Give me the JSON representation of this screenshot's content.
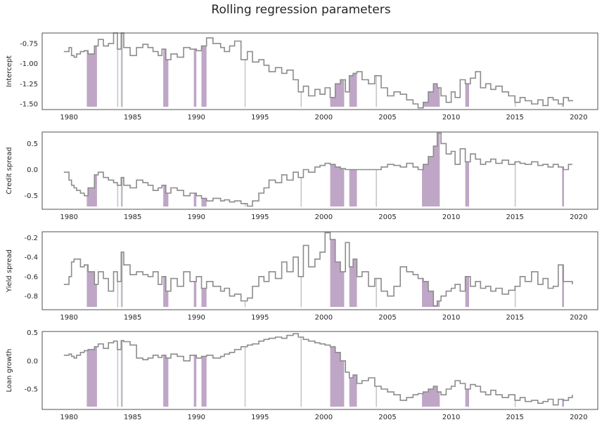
{
  "title": "Rolling regression parameters",
  "colors": {
    "line": "#8c8c8c",
    "shade": "#bfa6c6",
    "frame": "#262626"
  },
  "chart_data": [
    {
      "type": "line",
      "ylabel": "Intercept",
      "xlim": [
        1977.9,
        2021.5
      ],
      "ylim": [
        -1.57,
        -0.62
      ],
      "xticks": [
        1980,
        1985,
        1990,
        1995,
        2000,
        2005,
        2010,
        2015,
        2020
      ],
      "xtick_labels": [
        "1980",
        "1985",
        "1990",
        "1995",
        "2000",
        "2005",
        "2010",
        "2015",
        "2020"
      ],
      "yticks": [
        -0.75,
        -1.0,
        -1.25,
        -1.5
      ],
      "ytick_labels": [
        "-0.75",
        "-1.00",
        "-1.25",
        "-1.50"
      ],
      "series": [
        {
          "x": [
            1979.6,
            1980.0,
            1980.2,
            1980.4,
            1980.6,
            1980.9,
            1981.2,
            1981.5,
            1982.0,
            1982.3,
            1982.7,
            1983.1,
            1983.5,
            1983.8,
            1984.1,
            1984.3,
            1984.8,
            1985.3,
            1985.8,
            1986.2,
            1986.6,
            1987.0,
            1987.3,
            1987.6,
            1988.0,
            1988.5,
            1989.0,
            1989.5,
            1990.0,
            1990.4,
            1990.8,
            1991.3,
            1991.9,
            1992.2,
            1992.6,
            1993.0,
            1993.5,
            1994.0,
            1994.4,
            1994.9,
            1995.3,
            1995.7,
            1996.2,
            1996.7,
            1997.1,
            1997.6,
            1998.0,
            1998.4,
            1998.8,
            1999.3,
            1999.7,
            2000.1,
            2000.5,
            2000.9,
            2001.3,
            2001.7,
            2002.0,
            2002.3,
            2002.6,
            2003.0,
            2003.5,
            2004.0,
            2004.5,
            2005.0,
            2005.5,
            2006.0,
            2006.5,
            2007.0,
            2007.4,
            2007.8,
            2008.2,
            2008.6,
            2008.9,
            2009.2,
            2009.6,
            2010.0,
            2010.3,
            2010.7,
            2011.1,
            2011.5,
            2011.9,
            2012.3,
            2012.7,
            2013.1,
            2013.5,
            2014.0,
            2014.5,
            2015.0,
            2015.4,
            2015.8,
            2016.3,
            2016.8,
            2017.2,
            2017.6,
            2018.0,
            2018.4,
            2018.8,
            2019.2,
            2019.5
          ],
          "y": [
            -0.85,
            -0.8,
            -0.9,
            -0.92,
            -0.88,
            -0.85,
            -0.84,
            -0.88,
            -0.78,
            -0.7,
            -0.78,
            -0.75,
            -0.62,
            -0.82,
            -0.62,
            -0.8,
            -0.9,
            -0.8,
            -0.76,
            -0.8,
            -0.85,
            -0.9,
            -0.82,
            -0.95,
            -0.88,
            -0.92,
            -0.8,
            -0.82,
            -0.84,
            -0.78,
            -0.68,
            -0.75,
            -0.8,
            -0.85,
            -0.78,
            -0.72,
            -0.95,
            -0.85,
            -0.98,
            -0.95,
            -1.02,
            -1.1,
            -1.05,
            -1.12,
            -1.08,
            -1.2,
            -1.35,
            -1.28,
            -1.4,
            -1.32,
            -1.38,
            -1.3,
            -1.42,
            -1.25,
            -1.2,
            -1.35,
            -1.15,
            -1.12,
            -1.1,
            -1.2,
            -1.25,
            -1.15,
            -1.3,
            -1.4,
            -1.35,
            -1.38,
            -1.45,
            -1.5,
            -1.55,
            -1.48,
            -1.35,
            -1.25,
            -1.3,
            -1.4,
            -1.48,
            -1.35,
            -1.42,
            -1.2,
            -1.25,
            -1.18,
            -1.1,
            -1.3,
            -1.25,
            -1.32,
            -1.28,
            -1.35,
            -1.4,
            -1.48,
            -1.42,
            -1.46,
            -1.5,
            -1.45,
            -1.52,
            -1.42,
            -1.45,
            -1.5,
            -1.42,
            -1.46,
            -1.45
          ]
        }
      ]
    },
    {
      "type": "line",
      "ylabel": "Credit spread",
      "xlim": [
        1977.9,
        2021.5
      ],
      "ylim": [
        -0.76,
        0.72
      ],
      "xticks": [
        1980,
        1985,
        1990,
        1995,
        2000,
        2005,
        2010,
        2015,
        2020
      ],
      "xtick_labels": [
        "1980",
        "1985",
        "1990",
        "1995",
        "2000",
        "2005",
        "2010",
        "2015",
        "2020"
      ],
      "yticks": [
        0.5,
        0.0,
        -0.5
      ],
      "ytick_labels": [
        "0.5",
        "0.0",
        "-0.5"
      ],
      "series": [
        {
          "x": [
            1979.6,
            1980.0,
            1980.2,
            1980.4,
            1980.6,
            1980.9,
            1981.2,
            1981.5,
            1982.0,
            1982.3,
            1982.7,
            1983.1,
            1983.5,
            1983.8,
            1984.1,
            1984.3,
            1984.8,
            1985.3,
            1985.8,
            1986.2,
            1986.6,
            1987.0,
            1987.3,
            1987.6,
            1988.0,
            1988.5,
            1989.0,
            1989.5,
            1990.0,
            1990.4,
            1990.8,
            1991.3,
            1991.9,
            1992.2,
            1992.6,
            1993.0,
            1993.5,
            1994.0,
            1994.4,
            1994.9,
            1995.3,
            1995.7,
            1996.2,
            1996.7,
            1997.1,
            1997.6,
            1998.0,
            1998.4,
            1998.8,
            1999.3,
            1999.7,
            2000.1,
            2000.5,
            2000.9,
            2001.3,
            2001.7,
            2002.0,
            2002.3,
            2002.6,
            2003.0,
            2003.5,
            2004.0,
            2004.5,
            2005.0,
            2005.5,
            2006.0,
            2006.5,
            2007.0,
            2007.4,
            2007.8,
            2008.2,
            2008.6,
            2008.9,
            2009.2,
            2009.6,
            2010.0,
            2010.3,
            2010.7,
            2011.1,
            2011.5,
            2011.9,
            2012.3,
            2012.7,
            2013.1,
            2013.5,
            2014.0,
            2014.5,
            2015.0,
            2015.4,
            2015.8,
            2016.3,
            2016.8,
            2017.2,
            2017.6,
            2018.0,
            2018.4,
            2018.8,
            2019.2,
            2019.5
          ],
          "y": [
            -0.05,
            -0.2,
            -0.3,
            -0.35,
            -0.4,
            -0.45,
            -0.5,
            -0.35,
            -0.1,
            -0.05,
            -0.15,
            -0.2,
            -0.25,
            -0.3,
            -0.15,
            -0.3,
            -0.35,
            -0.2,
            -0.25,
            -0.3,
            -0.4,
            -0.35,
            -0.3,
            -0.45,
            -0.35,
            -0.4,
            -0.5,
            -0.45,
            -0.5,
            -0.55,
            -0.6,
            -0.55,
            -0.6,
            -0.58,
            -0.62,
            -0.6,
            -0.65,
            -0.7,
            -0.6,
            -0.45,
            -0.35,
            -0.2,
            -0.25,
            -0.1,
            -0.2,
            -0.05,
            -0.15,
            0.0,
            -0.05,
            0.05,
            0.08,
            0.12,
            0.1,
            0.05,
            0.02,
            0.0,
            0.0,
            0.0,
            0.0,
            0.0,
            0.0,
            0.0,
            0.05,
            0.1,
            0.08,
            0.05,
            0.12,
            0.05,
            0.0,
            0.1,
            0.25,
            0.45,
            0.7,
            0.5,
            0.3,
            0.35,
            0.1,
            0.4,
            0.15,
            0.3,
            0.2,
            0.1,
            0.15,
            0.2,
            0.12,
            0.18,
            0.1,
            0.15,
            0.12,
            0.1,
            0.15,
            0.08,
            0.1,
            0.05,
            0.1,
            0.05,
            0.0,
            0.1,
            0.1
          ]
        }
      ]
    },
    {
      "type": "line",
      "ylabel": "Yield spread",
      "xlim": [
        1977.9,
        2021.5
      ],
      "ylim": [
        -0.94,
        -0.14
      ],
      "xticks": [
        1980,
        1985,
        1990,
        1995,
        2000,
        2005,
        2010,
        2015,
        2020
      ],
      "xtick_labels": [
        "1980",
        "1985",
        "1990",
        "1995",
        "2000",
        "2005",
        "2010",
        "2015",
        "2020"
      ],
      "yticks": [
        -0.2,
        -0.4,
        -0.6,
        -0.8
      ],
      "ytick_labels": [
        "-0.2",
        "-0.4",
        "-0.6",
        "-0.8"
      ],
      "series": [
        {
          "x": [
            1979.6,
            1980.0,
            1980.2,
            1980.4,
            1980.6,
            1980.9,
            1981.2,
            1981.5,
            1982.0,
            1982.3,
            1982.7,
            1983.1,
            1983.5,
            1983.8,
            1984.1,
            1984.3,
            1984.8,
            1985.3,
            1985.8,
            1986.2,
            1986.6,
            1987.0,
            1987.3,
            1987.6,
            1988.0,
            1988.5,
            1989.0,
            1989.5,
            1990.0,
            1990.4,
            1990.8,
            1991.3,
            1991.9,
            1992.2,
            1992.6,
            1993.0,
            1993.5,
            1994.0,
            1994.4,
            1994.9,
            1995.3,
            1995.7,
            1996.2,
            1996.7,
            1997.1,
            1997.6,
            1998.0,
            1998.4,
            1998.8,
            1999.3,
            1999.7,
            2000.1,
            2000.5,
            2000.9,
            2001.3,
            2001.7,
            2002.0,
            2002.3,
            2002.6,
            2003.0,
            2003.5,
            2004.0,
            2004.5,
            2005.0,
            2005.5,
            2006.0,
            2006.5,
            2007.0,
            2007.4,
            2007.8,
            2008.2,
            2008.6,
            2008.9,
            2009.2,
            2009.6,
            2010.0,
            2010.3,
            2010.7,
            2011.1,
            2011.5,
            2011.9,
            2012.3,
            2012.7,
            2013.1,
            2013.5,
            2014.0,
            2014.5,
            2015.0,
            2015.4,
            2015.8,
            2016.3,
            2016.8,
            2017.2,
            2017.6,
            2018.0,
            2018.4,
            2018.8,
            2019.2,
            2019.5
          ],
          "y": [
            -0.68,
            -0.6,
            -0.45,
            -0.42,
            -0.42,
            -0.5,
            -0.48,
            -0.55,
            -0.68,
            -0.55,
            -0.62,
            -0.75,
            -0.55,
            -0.65,
            -0.35,
            -0.48,
            -0.58,
            -0.55,
            -0.58,
            -0.6,
            -0.55,
            -0.68,
            -0.6,
            -0.75,
            -0.62,
            -0.7,
            -0.55,
            -0.65,
            -0.6,
            -0.72,
            -0.65,
            -0.7,
            -0.75,
            -0.72,
            -0.8,
            -0.78,
            -0.85,
            -0.82,
            -0.7,
            -0.6,
            -0.65,
            -0.55,
            -0.62,
            -0.45,
            -0.55,
            -0.4,
            -0.6,
            -0.28,
            -0.5,
            -0.42,
            -0.35,
            -0.15,
            -0.22,
            -0.45,
            -0.55,
            -0.25,
            -0.5,
            -0.42,
            -0.6,
            -0.55,
            -0.7,
            -0.62,
            -0.75,
            -0.8,
            -0.7,
            -0.5,
            -0.55,
            -0.58,
            -0.62,
            -0.65,
            -0.75,
            -0.9,
            -0.85,
            -0.8,
            -0.75,
            -0.72,
            -0.68,
            -0.75,
            -0.6,
            -0.7,
            -0.65,
            -0.72,
            -0.7,
            -0.75,
            -0.72,
            -0.78,
            -0.74,
            -0.7,
            -0.6,
            -0.65,
            -0.55,
            -0.68,
            -0.62,
            -0.72,
            -0.7,
            -0.48,
            -0.65,
            -0.65,
            -0.68
          ]
        }
      ]
    },
    {
      "type": "line",
      "ylabel": "Loan growth",
      "xlim": [
        1977.9,
        2021.5
      ],
      "ylim": [
        -0.86,
        0.52
      ],
      "xticks": [
        1980,
        1985,
        1990,
        1995,
        2000,
        2005,
        2010,
        2015,
        2020
      ],
      "xtick_labels": [
        "1980",
        "1985",
        "1990",
        "1995",
        "2000",
        "2005",
        "2010",
        "2015",
        "2020"
      ],
      "yticks": [
        0.5,
        0.0,
        -0.5
      ],
      "ytick_labels": [
        "0.5",
        "0.0",
        "-0.5"
      ],
      "series": [
        {
          "x": [
            1979.6,
            1980.0,
            1980.2,
            1980.4,
            1980.6,
            1980.9,
            1981.2,
            1981.5,
            1982.0,
            1982.3,
            1982.7,
            1983.1,
            1983.5,
            1983.8,
            1984.1,
            1984.3,
            1984.8,
            1985.3,
            1985.8,
            1986.2,
            1986.6,
            1987.0,
            1987.3,
            1987.6,
            1988.0,
            1988.5,
            1989.0,
            1989.5,
            1990.0,
            1990.4,
            1990.8,
            1991.3,
            1991.9,
            1992.2,
            1992.6,
            1993.0,
            1993.5,
            1994.0,
            1994.4,
            1994.9,
            1995.3,
            1995.7,
            1996.2,
            1996.7,
            1997.1,
            1997.6,
            1998.0,
            1998.4,
            1998.8,
            1999.3,
            1999.7,
            2000.1,
            2000.5,
            2000.9,
            2001.3,
            2001.7,
            2002.0,
            2002.3,
            2002.6,
            2003.0,
            2003.5,
            2004.0,
            2004.5,
            2005.0,
            2005.5,
            2006.0,
            2006.5,
            2007.0,
            2007.4,
            2007.8,
            2008.2,
            2008.6,
            2008.9,
            2009.2,
            2009.6,
            2010.0,
            2010.3,
            2010.7,
            2011.1,
            2011.5,
            2011.9,
            2012.3,
            2012.7,
            2013.1,
            2013.5,
            2014.0,
            2014.5,
            2015.0,
            2015.4,
            2015.8,
            2016.3,
            2016.8,
            2017.2,
            2017.6,
            2018.0,
            2018.4,
            2018.8,
            2019.2,
            2019.5
          ],
          "y": [
            0.1,
            0.12,
            0.08,
            0.05,
            0.1,
            0.15,
            0.18,
            0.2,
            0.25,
            0.3,
            0.22,
            0.32,
            0.35,
            0.2,
            0.36,
            0.34,
            0.28,
            0.05,
            0.02,
            0.05,
            0.1,
            0.06,
            0.1,
            0.05,
            0.12,
            0.08,
            0.0,
            0.1,
            0.05,
            0.08,
            0.1,
            0.05,
            0.08,
            0.12,
            0.15,
            0.2,
            0.25,
            0.28,
            0.3,
            0.35,
            0.38,
            0.4,
            0.42,
            0.4,
            0.45,
            0.48,
            0.42,
            0.38,
            0.35,
            0.32,
            0.3,
            0.28,
            0.25,
            0.15,
            0.0,
            -0.2,
            -0.3,
            -0.25,
            -0.4,
            -0.35,
            -0.3,
            -0.45,
            -0.5,
            -0.55,
            -0.6,
            -0.7,
            -0.65,
            -0.6,
            -0.58,
            -0.55,
            -0.5,
            -0.45,
            -0.55,
            -0.6,
            -0.5,
            -0.45,
            -0.35,
            -0.4,
            -0.5,
            -0.42,
            -0.45,
            -0.55,
            -0.6,
            -0.52,
            -0.6,
            -0.65,
            -0.6,
            -0.7,
            -0.65,
            -0.72,
            -0.7,
            -0.75,
            -0.72,
            -0.68,
            -0.78,
            -0.68,
            -0.7,
            -0.65,
            -0.6
          ]
        }
      ]
    }
  ],
  "shaded_periods": [
    [
      1981.4,
      1982.2
    ],
    [
      1983.8,
      1983.85
    ],
    [
      1984.1,
      1984.2
    ],
    [
      1987.4,
      1987.8
    ],
    [
      1989.8,
      1990.0
    ],
    [
      1990.4,
      1990.8
    ],
    [
      1993.8,
      1993.85
    ],
    [
      1998.2,
      1998.25
    ],
    [
      2000.5,
      2001.6
    ],
    [
      2002.0,
      2002.6
    ],
    [
      2004.1,
      2004.15
    ],
    [
      2007.7,
      2009.1
    ],
    [
      2011.1,
      2011.4
    ],
    [
      2015.0,
      2015.05
    ],
    [
      2018.7,
      2018.85
    ]
  ]
}
